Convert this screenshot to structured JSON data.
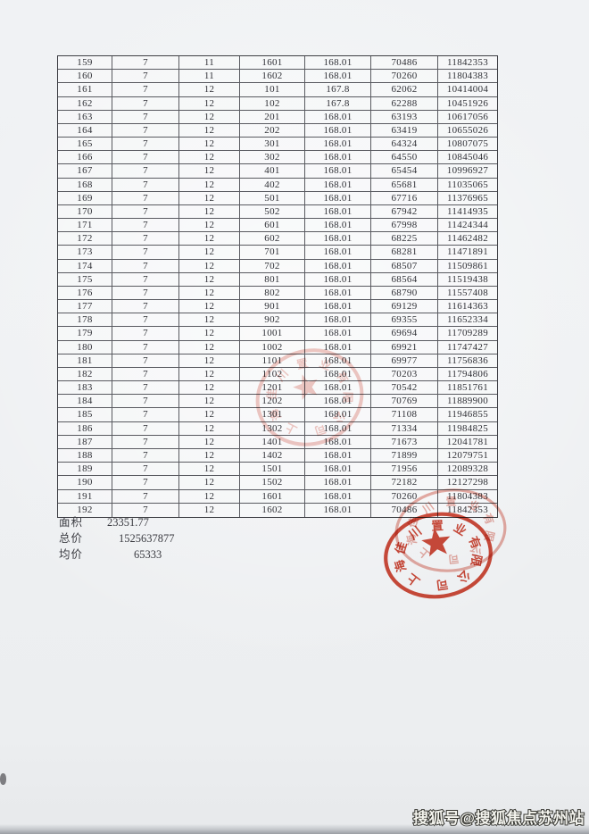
{
  "table": {
    "rows": [
      [
        "159",
        "7",
        "11",
        "1601",
        "168.01",
        "70486",
        "11842353"
      ],
      [
        "160",
        "7",
        "11",
        "1602",
        "168.01",
        "70260",
        "11804383"
      ],
      [
        "161",
        "7",
        "12",
        "101",
        "167.8",
        "62062",
        "10414004"
      ],
      [
        "162",
        "7",
        "12",
        "102",
        "167.8",
        "62288",
        "10451926"
      ],
      [
        "163",
        "7",
        "12",
        "201",
        "168.01",
        "63193",
        "10617056"
      ],
      [
        "164",
        "7",
        "12",
        "202",
        "168.01",
        "63419",
        "10655026"
      ],
      [
        "165",
        "7",
        "12",
        "301",
        "168.01",
        "64324",
        "10807075"
      ],
      [
        "166",
        "7",
        "12",
        "302",
        "168.01",
        "64550",
        "10845046"
      ],
      [
        "167",
        "7",
        "12",
        "401",
        "168.01",
        "65454",
        "10996927"
      ],
      [
        "168",
        "7",
        "12",
        "402",
        "168.01",
        "65681",
        "11035065"
      ],
      [
        "169",
        "7",
        "12",
        "501",
        "168.01",
        "67716",
        "11376965"
      ],
      [
        "170",
        "7",
        "12",
        "502",
        "168.01",
        "67942",
        "11414935"
      ],
      [
        "171",
        "7",
        "12",
        "601",
        "168.01",
        "67998",
        "11424344"
      ],
      [
        "172",
        "7",
        "12",
        "602",
        "168.01",
        "68225",
        "11462482"
      ],
      [
        "173",
        "7",
        "12",
        "701",
        "168.01",
        "68281",
        "11471891"
      ],
      [
        "174",
        "7",
        "12",
        "702",
        "168.01",
        "68507",
        "11509861"
      ],
      [
        "175",
        "7",
        "12",
        "801",
        "168.01",
        "68564",
        "11519438"
      ],
      [
        "176",
        "7",
        "12",
        "802",
        "168.01",
        "68790",
        "11557408"
      ],
      [
        "177",
        "7",
        "12",
        "901",
        "168.01",
        "69129",
        "11614363"
      ],
      [
        "178",
        "7",
        "12",
        "902",
        "168.01",
        "69355",
        "11652334"
      ],
      [
        "179",
        "7",
        "12",
        "1001",
        "168.01",
        "69694",
        "11709289"
      ],
      [
        "180",
        "7",
        "12",
        "1002",
        "168.01",
        "69921",
        "11747427"
      ],
      [
        "181",
        "7",
        "12",
        "1101",
        "168.01",
        "69977",
        "11756836"
      ],
      [
        "182",
        "7",
        "12",
        "1102",
        "168.01",
        "70203",
        "11794806"
      ],
      [
        "183",
        "7",
        "12",
        "1201",
        "168.01",
        "70542",
        "11851761"
      ],
      [
        "184",
        "7",
        "12",
        "1202",
        "168.01",
        "70769",
        "11889900"
      ],
      [
        "185",
        "7",
        "12",
        "1301",
        "168.01",
        "71108",
        "11946855"
      ],
      [
        "186",
        "7",
        "12",
        "1302",
        "168.01",
        "71334",
        "11984825"
      ],
      [
        "187",
        "7",
        "12",
        "1401",
        "168.01",
        "71673",
        "12041781"
      ],
      [
        "188",
        "7",
        "12",
        "1402",
        "168.01",
        "71899",
        "12079751"
      ],
      [
        "189",
        "7",
        "12",
        "1501",
        "168.01",
        "71956",
        "12089328"
      ],
      [
        "190",
        "7",
        "12",
        "1502",
        "168.01",
        "72182",
        "12127298"
      ],
      [
        "191",
        "7",
        "12",
        "1601",
        "168.01",
        "70260",
        "11804383"
      ],
      [
        "192",
        "7",
        "12",
        "1602",
        "168.01",
        "70486",
        "11842353"
      ]
    ]
  },
  "summary": {
    "items": [
      {
        "label": "面积",
        "value": "23351.77"
      },
      {
        "label": "总价",
        "value": "1525637877"
      },
      {
        "label": "均价",
        "value": "65333"
      }
    ]
  },
  "seal": {
    "company": "上海佳川置业有限公司",
    "color": "#cd3c2a"
  },
  "watermark": {
    "text": "搜狐号@搜狐焦点苏州站"
  }
}
